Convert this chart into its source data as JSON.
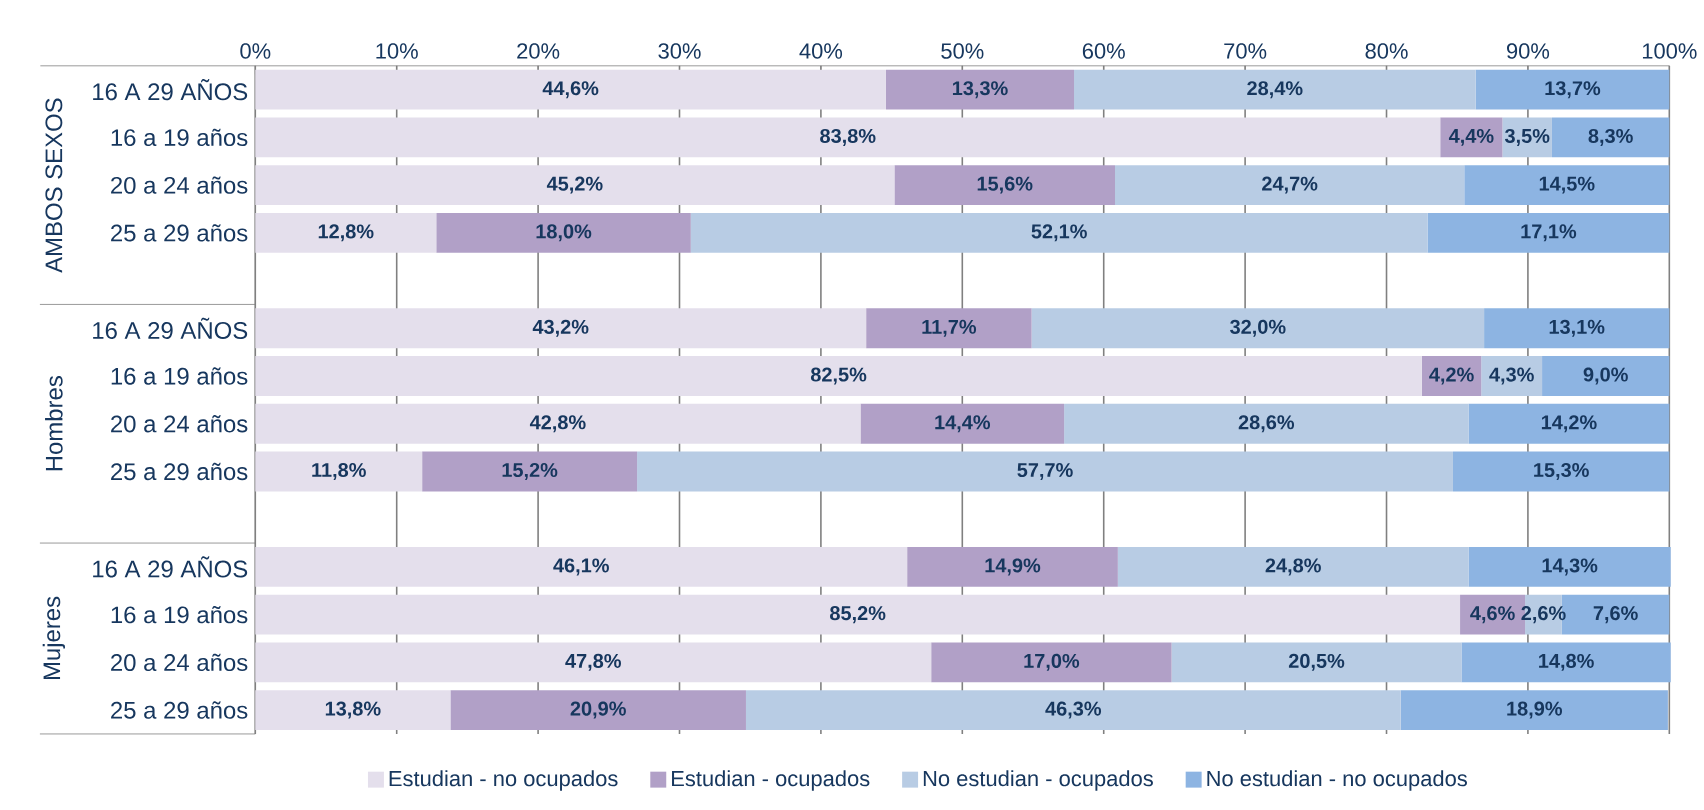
{
  "chart_data": {
    "type": "bar",
    "orientation": "horizontal",
    "stacked": true,
    "categories": [
      "16 A 29 AÑOS",
      "16 a 19 años",
      "20 a 24 años",
      "25 a 29 años",
      null,
      "16 A 29 AÑOS",
      "16 a 19 años",
      "20 a 24 años",
      "25 a 29 años",
      null,
      "16 A 29 AÑOS",
      "16 a 19 años",
      "20 a 24 años",
      "25 a 29 años"
    ],
    "annotations": [
      "AMBOS SEXOS",
      "Hombres",
      "Mujeres"
    ],
    "series": [
      {
        "name": "Estudian - no ocupados",
        "color": "#e4dfec",
        "values": [
          44.6,
          83.8,
          45.2,
          12.8,
          null,
          43.2,
          82.5,
          42.8,
          11.8,
          null,
          46.1,
          85.2,
          47.8,
          13.8
        ],
        "value_labels": [
          "44,6%",
          "83,8%",
          "45,2%",
          "12,8%",
          null,
          "43,2%",
          "82,5%",
          "42,8%",
          "11,8%",
          null,
          "46,1%",
          "85,2%",
          "47,8%",
          "13,8%"
        ]
      },
      {
        "name": "Estudian - ocupados",
        "color": "#b1a0c7",
        "values": [
          13.3,
          4.4,
          15.6,
          18.0,
          null,
          11.7,
          4.2,
          14.4,
          15.2,
          null,
          14.9,
          4.6,
          17.0,
          20.9
        ],
        "value_labels": [
          "13,3%",
          "4,4%",
          "15,6%",
          "18,0%",
          null,
          "11,7%",
          "4,2%",
          "14,4%",
          "15,2%",
          null,
          "14,9%",
          "4,6%",
          "17,0%",
          "20,9%"
        ]
      },
      {
        "name": "No estudian - ocupados",
        "color": "#b8cce4",
        "values": [
          28.4,
          3.5,
          24.7,
          52.1,
          null,
          32.0,
          4.3,
          28.6,
          57.7,
          null,
          24.8,
          2.6,
          20.5,
          46.3
        ],
        "value_labels": [
          "28,4%",
          "3,5%",
          "24,7%",
          "52,1%",
          null,
          "32,0%",
          "4,3%",
          "28,6%",
          "57,7%",
          null,
          "24,8%",
          "2,6%",
          "20,5%",
          "46,3%"
        ]
      },
      {
        "name": "No estudian - no ocupados",
        "color": "#8db4e2",
        "values": [
          13.7,
          8.3,
          14.5,
          17.1,
          null,
          13.1,
          9.0,
          14.2,
          15.3,
          null,
          14.3,
          7.6,
          14.8,
          18.9
        ],
        "value_labels": [
          "13,7%",
          "8,3%",
          "14,5%",
          "17,1%",
          null,
          "13,1%",
          "9,0%",
          "14,2%",
          "15,3%",
          null,
          "14,3%",
          "7,6%",
          "14,8%",
          "18,9%"
        ]
      }
    ],
    "xlim": [
      0,
      100
    ],
    "xticks": [
      {
        "value": 0,
        "label": "0%"
      },
      {
        "value": 10,
        "label": "10%"
      },
      {
        "value": 20,
        "label": "20%"
      },
      {
        "value": 30,
        "label": "30%"
      },
      {
        "value": 40,
        "label": "40%"
      },
      {
        "value": 50,
        "label": "50%"
      },
      {
        "value": 60,
        "label": "60%"
      },
      {
        "value": 70,
        "label": "70%"
      },
      {
        "value": 80,
        "label": "80%"
      },
      {
        "value": 90,
        "label": "90%"
      },
      {
        "value": 100,
        "label": "100%"
      }
    ],
    "grid": "x",
    "legend": "bottom"
  }
}
